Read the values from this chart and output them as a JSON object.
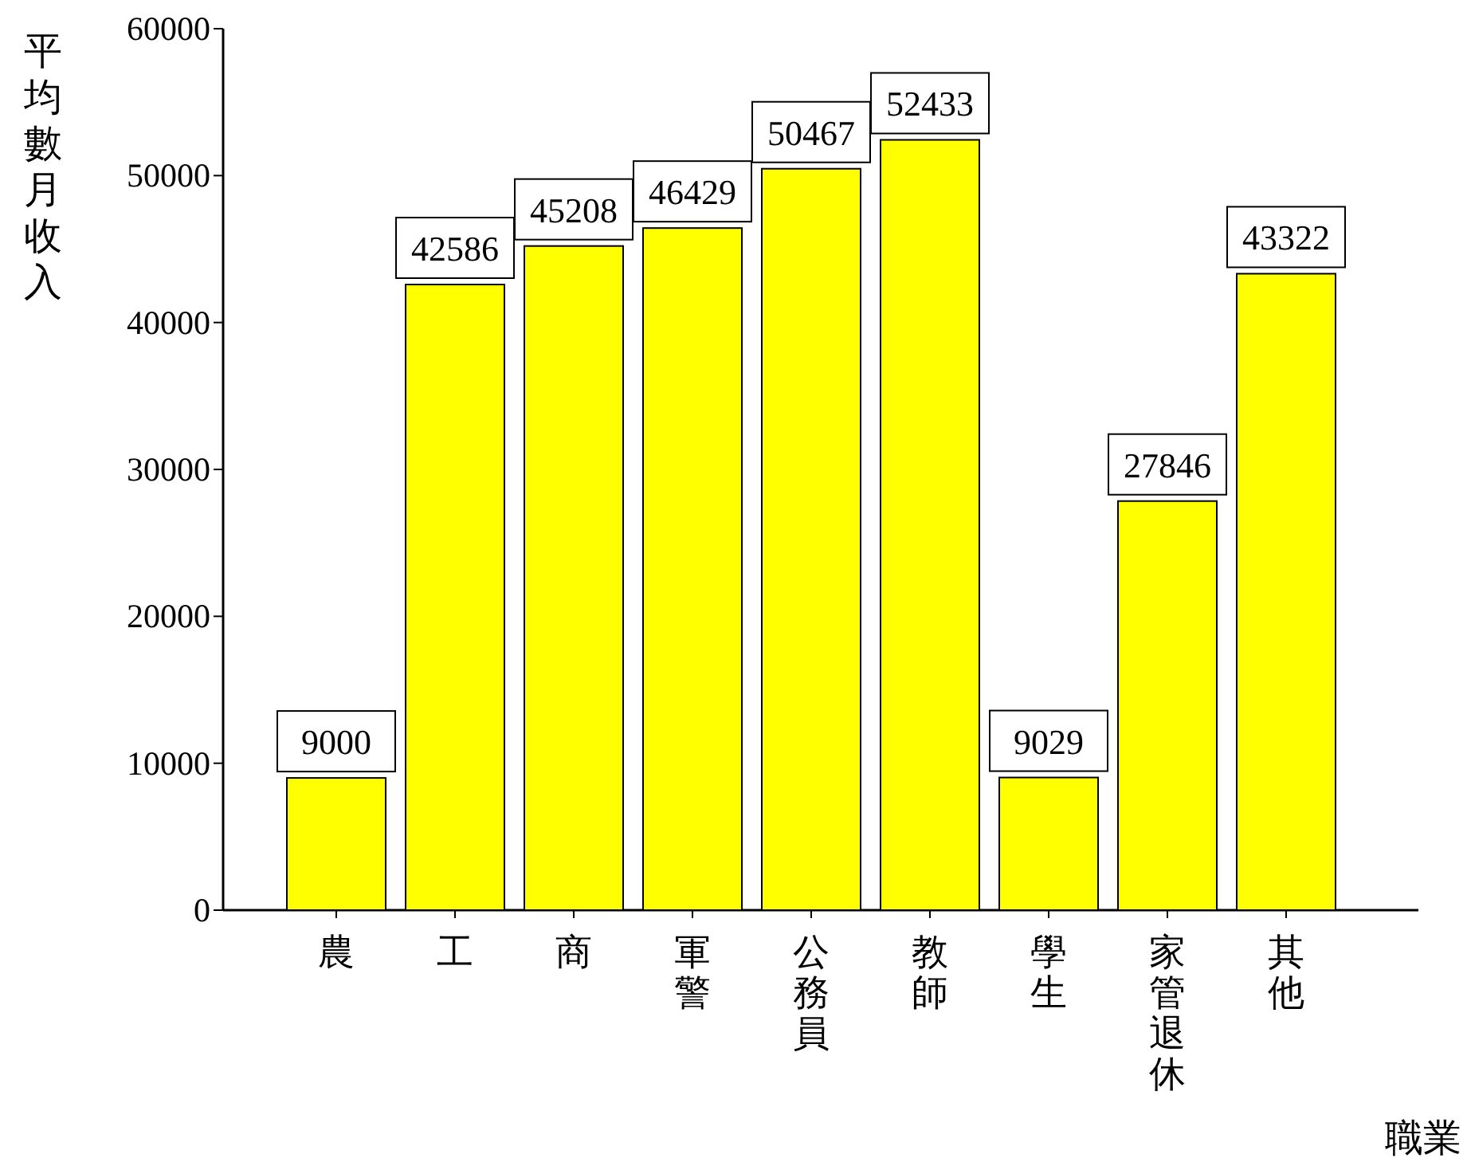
{
  "chart_data": {
    "type": "bar",
    "xlabel": "職業",
    "ylabel": "平均數月收入",
    "categories": [
      "農",
      "工",
      "商",
      "軍警",
      "公務員",
      "教師",
      "學生",
      "家管退休",
      "其他"
    ],
    "values": [
      9000,
      42586,
      45208,
      46429,
      50467,
      52433,
      9029,
      27846,
      43322
    ],
    "color": "#ffff00",
    "ylim": [
      0,
      60000
    ],
    "yticks": [
      0,
      10000,
      20000,
      30000,
      40000,
      50000,
      60000
    ],
    "data_labels": true
  }
}
